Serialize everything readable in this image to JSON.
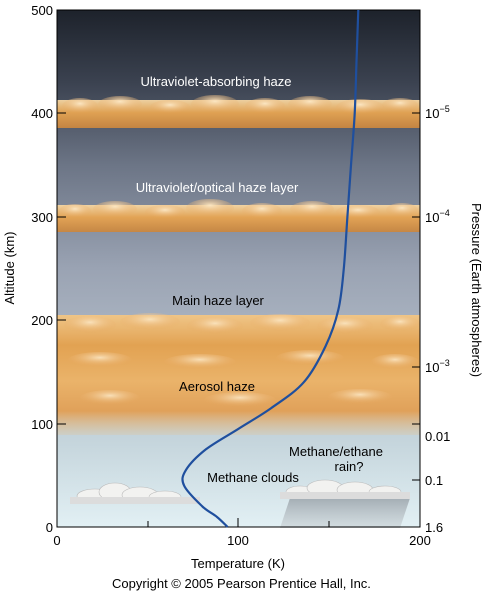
{
  "axes": {
    "y_label": "Altitude (km)",
    "x_label": "Temperature (K)",
    "right_label": "Pressure (Earth atmospheres)",
    "y_ticks": [
      "0",
      "100",
      "200",
      "300",
      "400",
      "500"
    ],
    "x_ticks": [
      "0",
      "100",
      "200"
    ],
    "pressure_ticks": [
      {
        "label": "10",
        "exp": "−5",
        "alt_km": 400
      },
      {
        "label": "10",
        "exp": "−4",
        "alt_km": 300
      },
      {
        "label": "10",
        "exp": "−3",
        "alt_km": 155
      },
      {
        "label": "0.01",
        "exp": "",
        "alt_km": 100
      },
      {
        "label": "0.1",
        "exp": "",
        "alt_km": 45
      },
      {
        "label": "1.6",
        "exp": "",
        "alt_km": 0
      }
    ]
  },
  "labels": {
    "uv_haze": "Ultraviolet-absorbing haze",
    "uv_optical": "Ultraviolet/optical haze layer",
    "main_haze": "Main haze layer",
    "aerosol": "Aerosol haze",
    "methane_clouds": "Methane clouds",
    "methane_rain_1": "Methane/ethane",
    "methane_rain_2": "rain?"
  },
  "copyright": "Copyright © 2005 Pearson Prentice Hall, Inc.",
  "temperature_profile": {
    "x_unit": "K",
    "y_unit": "km",
    "points": [
      [
        94,
        0
      ],
      [
        88,
        10
      ],
      [
        80,
        20
      ],
      [
        70,
        40
      ],
      [
        71,
        55
      ],
      [
        82,
        75
      ],
      [
        100,
        95
      ],
      [
        118,
        115
      ],
      [
        136,
        140
      ],
      [
        148,
        175
      ],
      [
        155,
        210
      ],
      [
        158,
        250
      ],
      [
        160,
        300
      ],
      [
        162,
        350
      ],
      [
        164,
        400
      ],
      [
        165,
        450
      ],
      [
        166,
        500
      ]
    ]
  },
  "colors": {
    "curve": "#1f4f9e",
    "sky_top": "#20262f",
    "sky_bottom": "#dcecf2",
    "haze": "#e2a24e"
  }
}
